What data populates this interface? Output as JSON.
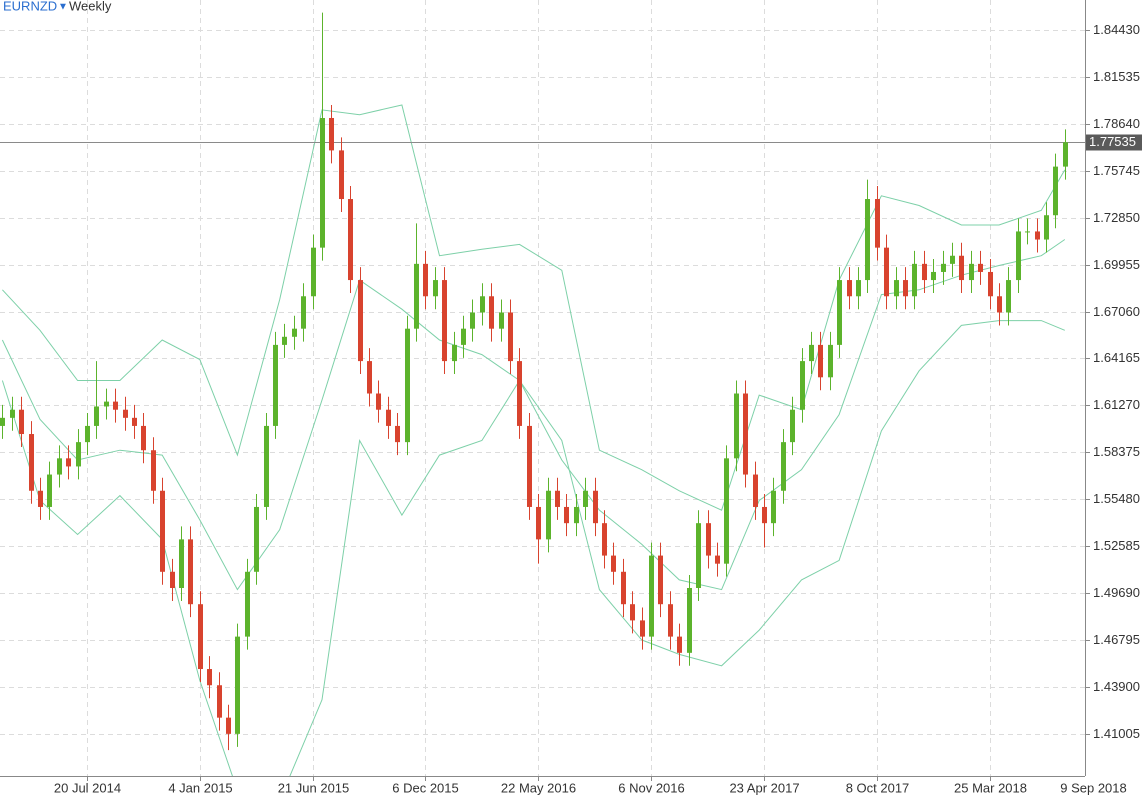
{
  "chart_data": {
    "type": "candlestick",
    "symbol": "EURNZD",
    "timeframe": "Weekly",
    "x": [
      -18,
      -16,
      -14,
      -12,
      -10,
      -8,
      -6,
      -4,
      -2,
      0,
      2,
      4,
      6,
      8,
      10,
      12,
      14,
      16,
      18,
      20,
      22,
      24,
      26,
      28,
      30,
      32,
      34,
      36,
      38,
      40,
      42,
      44,
      46,
      48,
      50,
      52,
      54,
      56,
      58,
      60,
      62,
      64,
      66,
      68,
      70,
      72,
      74,
      76,
      78,
      80,
      82,
      84,
      86,
      88,
      90,
      92,
      94,
      96,
      98,
      100,
      102,
      104,
      106,
      108,
      110,
      112,
      114,
      116,
      118,
      120,
      122,
      124,
      126,
      128,
      130,
      132,
      134,
      136,
      138,
      140,
      142,
      144,
      146,
      148,
      150,
      152,
      154,
      156,
      158,
      160,
      162,
      164,
      166,
      168,
      170,
      172,
      174,
      176,
      178,
      180,
      182,
      184,
      186,
      188,
      190,
      192,
      194,
      196,
      198,
      200,
      202,
      204,
      206,
      208
    ],
    "open": [
      1.6,
      1.605,
      1.61,
      1.595,
      1.56,
      1.55,
      1.57,
      1.58,
      1.575,
      1.59,
      1.6,
      1.612,
      1.615,
      1.61,
      1.605,
      1.6,
      1.585,
      1.56,
      1.51,
      1.5,
      1.53,
      1.49,
      1.45,
      1.44,
      1.42,
      1.41,
      1.47,
      1.51,
      1.55,
      1.6,
      1.65,
      1.655,
      1.66,
      1.68,
      1.71,
      1.79,
      1.77,
      1.74,
      1.69,
      1.64,
      1.62,
      1.61,
      1.6,
      1.59,
      1.66,
      1.7,
      1.68,
      1.69,
      1.64,
      1.65,
      1.66,
      1.67,
      1.68,
      1.66,
      1.67,
      1.64,
      1.6,
      1.55,
      1.53,
      1.56,
      1.55,
      1.54,
      1.55,
      1.56,
      1.54,
      1.52,
      1.51,
      1.49,
      1.48,
      1.47,
      1.52,
      1.49,
      1.47,
      1.46,
      1.5,
      1.54,
      1.52,
      1.515,
      1.58,
      1.62,
      1.57,
      1.55,
      1.54,
      1.56,
      1.59,
      1.61,
      1.64,
      1.65,
      1.63,
      1.65,
      1.69,
      1.68,
      1.69,
      1.74,
      1.71,
      1.68,
      1.69,
      1.68,
      1.7,
      1.69,
      1.695,
      1.7,
      1.705,
      1.69,
      1.7,
      1.695,
      1.68,
      1.67,
      1.69,
      1.72,
      1.72,
      1.715,
      1.73,
      1.76
    ],
    "high": [
      1.613,
      1.618,
      1.618,
      1.603,
      1.568,
      1.578,
      1.588,
      1.588,
      1.598,
      1.608,
      1.64,
      1.623,
      1.623,
      1.618,
      1.613,
      1.608,
      1.593,
      1.568,
      1.518,
      1.538,
      1.538,
      1.498,
      1.458,
      1.448,
      1.428,
      1.478,
      1.518,
      1.558,
      1.608,
      1.658,
      1.663,
      1.668,
      1.688,
      1.718,
      1.855,
      1.798,
      1.778,
      1.748,
      1.698,
      1.648,
      1.628,
      1.618,
      1.608,
      1.668,
      1.725,
      1.708,
      1.698,
      1.698,
      1.658,
      1.668,
      1.678,
      1.688,
      1.688,
      1.678,
      1.678,
      1.648,
      1.608,
      1.558,
      1.568,
      1.568,
      1.558,
      1.558,
      1.568,
      1.568,
      1.548,
      1.528,
      1.518,
      1.498,
      1.488,
      1.528,
      1.528,
      1.498,
      1.478,
      1.508,
      1.548,
      1.548,
      1.528,
      1.588,
      1.628,
      1.628,
      1.578,
      1.558,
      1.568,
      1.598,
      1.618,
      1.648,
      1.658,
      1.658,
      1.658,
      1.698,
      1.698,
      1.698,
      1.752,
      1.748,
      1.718,
      1.698,
      1.698,
      1.708,
      1.708,
      1.703,
      1.708,
      1.713,
      1.713,
      1.708,
      1.708,
      1.703,
      1.688,
      1.698,
      1.728,
      1.728,
      1.728,
      1.738,
      1.768,
      1.783
    ],
    "low": [
      1.592,
      1.597,
      1.587,
      1.552,
      1.542,
      1.542,
      1.562,
      1.567,
      1.567,
      1.582,
      1.592,
      1.604,
      1.602,
      1.597,
      1.592,
      1.577,
      1.552,
      1.502,
      1.492,
      1.492,
      1.482,
      1.442,
      1.432,
      1.412,
      1.4,
      1.402,
      1.462,
      1.502,
      1.542,
      1.592,
      1.642,
      1.647,
      1.652,
      1.672,
      1.702,
      1.762,
      1.732,
      1.682,
      1.632,
      1.612,
      1.602,
      1.592,
      1.582,
      1.582,
      1.652,
      1.672,
      1.672,
      1.632,
      1.632,
      1.642,
      1.652,
      1.662,
      1.652,
      1.652,
      1.632,
      1.592,
      1.542,
      1.515,
      1.522,
      1.542,
      1.532,
      1.532,
      1.542,
      1.532,
      1.512,
      1.502,
      1.482,
      1.472,
      1.462,
      1.462,
      1.482,
      1.462,
      1.452,
      1.452,
      1.492,
      1.512,
      1.507,
      1.507,
      1.572,
      1.562,
      1.542,
      1.525,
      1.532,
      1.552,
      1.582,
      1.602,
      1.632,
      1.622,
      1.622,
      1.642,
      1.672,
      1.672,
      1.682,
      1.702,
      1.672,
      1.672,
      1.672,
      1.672,
      1.682,
      1.682,
      1.687,
      1.692,
      1.682,
      1.682,
      1.687,
      1.672,
      1.662,
      1.662,
      1.682,
      1.712,
      1.707,
      1.707,
      1.722,
      1.752
    ],
    "close": [
      1.605,
      1.61,
      1.595,
      1.56,
      1.55,
      1.57,
      1.58,
      1.575,
      1.59,
      1.6,
      1.612,
      1.615,
      1.61,
      1.605,
      1.6,
      1.585,
      1.56,
      1.51,
      1.5,
      1.53,
      1.49,
      1.45,
      1.44,
      1.42,
      1.41,
      1.47,
      1.51,
      1.55,
      1.6,
      1.65,
      1.655,
      1.66,
      1.68,
      1.71,
      1.79,
      1.77,
      1.74,
      1.69,
      1.64,
      1.62,
      1.61,
      1.6,
      1.59,
      1.66,
      1.7,
      1.68,
      1.69,
      1.64,
      1.65,
      1.66,
      1.67,
      1.68,
      1.66,
      1.67,
      1.64,
      1.6,
      1.55,
      1.53,
      1.56,
      1.55,
      1.54,
      1.55,
      1.56,
      1.54,
      1.52,
      1.51,
      1.49,
      1.48,
      1.47,
      1.52,
      1.49,
      1.47,
      1.46,
      1.5,
      1.54,
      1.52,
      1.515,
      1.58,
      1.62,
      1.57,
      1.55,
      1.54,
      1.56,
      1.59,
      1.61,
      1.64,
      1.65,
      1.63,
      1.65,
      1.69,
      1.68,
      1.69,
      1.74,
      1.71,
      1.68,
      1.69,
      1.68,
      1.7,
      1.69,
      1.695,
      1.7,
      1.705,
      1.69,
      1.7,
      1.695,
      1.68,
      1.67,
      1.69,
      1.72,
      1.72,
      1.715,
      1.73,
      1.76,
      1.775
    ],
    "up_color": "#5cb32c",
    "down_color": "#d8432e",
    "bands": {
      "color": "#7dd0a8",
      "x": [
        -18,
        -10,
        -2,
        7,
        16,
        24,
        32,
        41,
        50,
        58,
        67,
        75,
        84,
        92,
        101,
        109,
        118,
        126,
        135,
        143,
        152,
        160,
        169,
        177,
        186,
        194,
        203,
        208
      ],
      "upper": [
        1.684,
        1.659,
        1.628,
        1.628,
        1.653,
        1.641,
        1.582,
        1.678,
        1.795,
        1.792,
        1.798,
        1.705,
        1.709,
        1.712,
        1.696,
        1.585,
        1.573,
        1.56,
        1.548,
        1.619,
        1.61,
        1.69,
        1.742,
        1.736,
        1.724,
        1.724,
        1.733,
        1.758
      ],
      "middle": [
        1.653,
        1.604,
        1.579,
        1.585,
        1.582,
        1.542,
        1.499,
        1.536,
        1.616,
        1.69,
        1.672,
        1.653,
        1.644,
        1.628,
        1.579,
        1.548,
        1.527,
        1.505,
        1.499,
        1.554,
        1.573,
        1.607,
        1.681,
        1.684,
        1.693,
        1.699,
        1.705,
        1.715
      ],
      "lower": [
        1.628,
        1.554,
        1.533,
        1.557,
        1.53,
        1.443,
        1.375,
        1.369,
        1.431,
        1.591,
        1.545,
        1.582,
        1.591,
        1.628,
        1.591,
        1.499,
        1.468,
        1.459,
        1.452,
        1.474,
        1.505,
        1.517,
        1.597,
        1.634,
        1.662,
        1.665,
        1.665,
        1.659
      ]
    },
    "last_price": 1.77535,
    "xlim": [
      -18.5,
      212.3
    ],
    "xticks": [
      {
        "value": 0,
        "label": "20 Jul 2014"
      },
      {
        "value": 24,
        "label": "4 Jan 2015"
      },
      {
        "value": 48,
        "label": "21 Jun 2015"
      },
      {
        "value": 72,
        "label": "6 Dec 2015"
      },
      {
        "value": 96,
        "label": "22 May 2016"
      },
      {
        "value": 120,
        "label": "6 Nov 2016"
      },
      {
        "value": 144,
        "label": "23 Apr 2017"
      },
      {
        "value": 168,
        "label": "8 Oct 2017"
      },
      {
        "value": 192,
        "label": "25 Mar 2018"
      },
      {
        "value": 214,
        "label": "9 Sep 2018"
      }
    ],
    "ylim": [
      1.384,
      1.8628
    ],
    "yticks": [
      {
        "value": 1.8443,
        "label": "1.84430"
      },
      1.81535,
      {
        "value": 1.7864,
        "label": "1.78640"
      },
      1.75745,
      {
        "value": 1.7285,
        "label": "1.72850"
      },
      1.69955,
      {
        "value": 1.6706,
        "label": "1.67060"
      },
      1.64165,
      {
        "value": 1.6127,
        "label": "1.61270"
      },
      1.58375,
      {
        "value": 1.5548,
        "label": "1.55480"
      },
      1.52585,
      {
        "value": 1.4969,
        "label": "1.49690"
      },
      1.46795,
      {
        "value": 1.439,
        "label": "1.43900"
      },
      1.41005
    ],
    "grid": true
  }
}
